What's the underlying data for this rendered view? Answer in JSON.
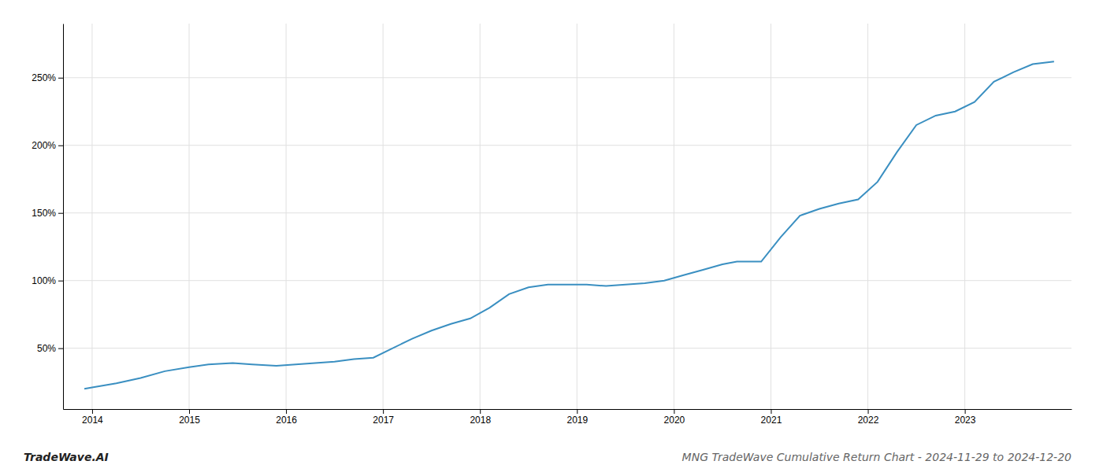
{
  "chart_data": {
    "type": "line",
    "title": "MNG TradeWave Cumulative Return Chart - 2024-11-29 to 2024-12-20",
    "annotations": [
      "TradeWave.AI"
    ],
    "x": [
      2013.92,
      2014.0,
      2014.25,
      2014.5,
      2014.75,
      2015.0,
      2015.2,
      2015.45,
      2015.65,
      2015.9,
      2016.1,
      2016.3,
      2016.5,
      2016.7,
      2016.9,
      2017.1,
      2017.3,
      2017.5,
      2017.7,
      2017.9,
      2018.1,
      2018.3,
      2018.5,
      2018.7,
      2018.9,
      2019.1,
      2019.3,
      2019.5,
      2019.7,
      2019.9,
      2020.1,
      2020.3,
      2020.5,
      2020.65,
      2020.9,
      2021.1,
      2021.3,
      2021.5,
      2021.7,
      2021.9,
      2022.1,
      2022.3,
      2022.5,
      2022.7,
      2022.9,
      2023.1,
      2023.3,
      2023.5,
      2023.7,
      2023.92
    ],
    "values": [
      20,
      21,
      24,
      28,
      33,
      36,
      38,
      39,
      38,
      37,
      38,
      39,
      40,
      42,
      43,
      50,
      57,
      63,
      68,
      72,
      80,
      90,
      95,
      97,
      97,
      97,
      96,
      97,
      98,
      100,
      104,
      108,
      112,
      114,
      114,
      132,
      148,
      153,
      157,
      160,
      173,
      195,
      215,
      222,
      225,
      232,
      247,
      254,
      260,
      262
    ],
    "color": "#3a8fc1",
    "xlim": [
      2013.7,
      2024.1
    ],
    "xticks": [
      2014,
      2015,
      2016,
      2017,
      2018,
      2019,
      2020,
      2021,
      2022,
      2023
    ],
    "ylim": [
      5,
      290
    ],
    "yticks": [
      {
        "value": 50,
        "label": "50%"
      },
      {
        "value": 100,
        "label": "100%"
      },
      {
        "value": 150,
        "label": "150%"
      },
      {
        "value": 200,
        "label": "200%"
      },
      {
        "value": 250,
        "label": "250%"
      }
    ],
    "grid": true
  }
}
